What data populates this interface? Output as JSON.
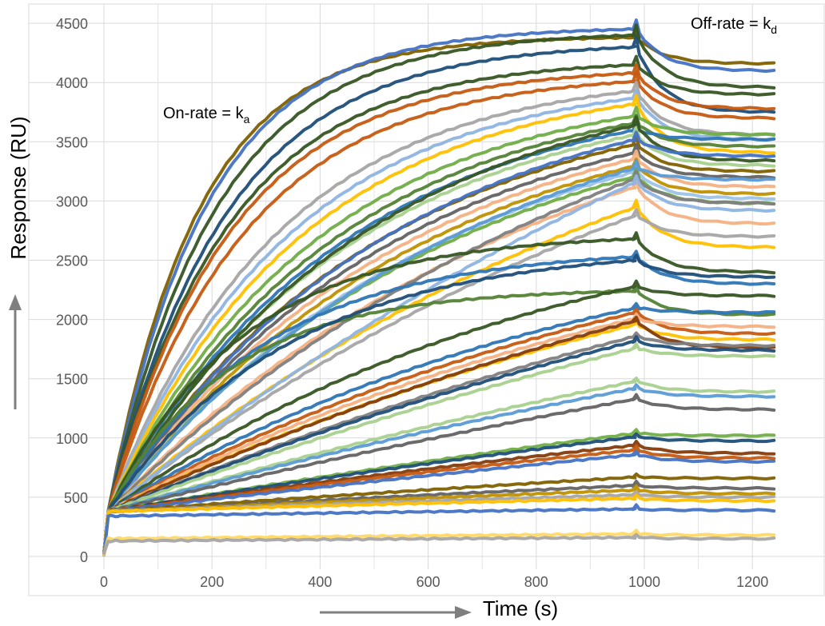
{
  "chart_data": {
    "type": "line",
    "title": "",
    "xlabel": "Time (s)",
    "ylabel": "Response (RU)",
    "xlim": [
      0,
      1250
    ],
    "ylim": [
      0,
      4500
    ],
    "x_ticks": [
      0,
      200,
      400,
      600,
      800,
      1000,
      1200
    ],
    "y_ticks": [
      0,
      500,
      1000,
      1500,
      2000,
      2500,
      3000,
      3500,
      4000,
      4500
    ],
    "x_minor_gridlines": [
      100,
      300,
      500,
      700,
      900,
      1100
    ],
    "grid": true,
    "legend": "none",
    "annotations": [
      {
        "text": "On-rate = k",
        "subscript": "a",
        "x": 200,
        "y": 3650
      },
      {
        "text": "Off-rate = k",
        "subscript": "d",
        "x": 1085,
        "y": 4450
      }
    ],
    "injection_end_s": 985,
    "curve_points_x": [
      0,
      5,
      10,
      15,
      20,
      30,
      50,
      75,
      100,
      150,
      200,
      300,
      400,
      500,
      600,
      700,
      800,
      900,
      985,
      1000,
      1050,
      1100,
      1150,
      1200,
      1250
    ],
    "series_note": "Each series is described by: baseline b (RU at t≈10 s), peak response p at end of association (t≈985 s), association shape k (1/s, small = nearly linear), dissociation end value e at t=1250 s, and color.",
    "series": [
      {
        "color": "#7f6000",
        "b": 380,
        "p": 4380,
        "k": 0.006,
        "e": 4160
      },
      {
        "color": "#4472c4",
        "b": 380,
        "p": 4450,
        "k": 0.0055,
        "e": 4100
      },
      {
        "color": "#375623",
        "b": 380,
        "p": 4400,
        "k": 0.005,
        "e": 3960
      },
      {
        "color": "#1f4e79",
        "b": 380,
        "p": 4300,
        "k": 0.0046,
        "e": 3750
      },
      {
        "color": "#375623",
        "b": 380,
        "p": 4150,
        "k": 0.0045,
        "e": 3900
      },
      {
        "color": "#c55a11",
        "b": 380,
        "p": 4080,
        "k": 0.0044,
        "e": 3780
      },
      {
        "color": "#c55a11",
        "b": 380,
        "p": 4010,
        "k": 0.004,
        "e": 3700
      },
      {
        "color": "#a5a5a5",
        "b": 380,
        "p": 3930,
        "k": 0.0032,
        "e": 3560
      },
      {
        "color": "#8eb4e3",
        "b": 380,
        "p": 3870,
        "k": 0.003,
        "e": 3520
      },
      {
        "color": "#ffc000",
        "b": 380,
        "p": 3820,
        "k": 0.0028,
        "e": 3410
      },
      {
        "color": "#70ad47",
        "b": 380,
        "p": 3720,
        "k": 0.0026,
        "e": 3560
      },
      {
        "color": "#548235",
        "b": 380,
        "p": 3660,
        "k": 0.0024,
        "e": 3460
      },
      {
        "color": "#2e75b6",
        "b": 380,
        "p": 3600,
        "k": 0.0023,
        "e": 3520
      },
      {
        "color": "#a9d18e",
        "b": 380,
        "p": 3560,
        "k": 0.0022,
        "e": 3300
      },
      {
        "color": "#375623",
        "b": 380,
        "p": 3640,
        "k": 0.0021,
        "e": 3340
      },
      {
        "color": "#7f6000",
        "b": 380,
        "p": 3480,
        "k": 0.002,
        "e": 3250
      },
      {
        "color": "#4472c4",
        "b": 380,
        "p": 3520,
        "k": 0.0019,
        "e": 3380
      },
      {
        "color": "#636363",
        "b": 380,
        "p": 3410,
        "k": 0.0019,
        "e": 3200
      },
      {
        "color": "#f4b183",
        "b": 380,
        "p": 3360,
        "k": 0.0018,
        "e": 3120
      },
      {
        "color": "#bf9000",
        "b": 380,
        "p": 3300,
        "k": 0.0017,
        "e": 3060
      },
      {
        "color": "#9dc3e6",
        "b": 380,
        "p": 3250,
        "k": 0.0016,
        "e": 3020
      },
      {
        "color": "#70ad47",
        "b": 380,
        "p": 3210,
        "k": 0.0016,
        "e": 2980
      },
      {
        "color": "#5b9bd5",
        "b": 380,
        "p": 3280,
        "k": 0.0015,
        "e": 3180
      },
      {
        "color": "#f4b183",
        "b": 380,
        "p": 3120,
        "k": 0.0012,
        "e": 2810
      },
      {
        "color": "#7f7f7f",
        "b": 380,
        "p": 3190,
        "k": 0.001,
        "e": 2980
      },
      {
        "color": "#ffc000",
        "b": 380,
        "p": 2950,
        "k": 0.0009,
        "e": 2610
      },
      {
        "color": "#a5a5a5",
        "b": 380,
        "p": 2880,
        "k": 0.0008,
        "e": 2700
      },
      {
        "color": "#8eb4e3",
        "b": 380,
        "p": 3160,
        "k": 0.0006,
        "e": 2920
      },
      {
        "color": "#375623",
        "b": 380,
        "p": 2680,
        "k": 0.004,
        "e": 2400
      },
      {
        "color": "#2e75b6",
        "b": 380,
        "p": 2530,
        "k": 0.0035,
        "e": 2300
      },
      {
        "color": "#548235",
        "b": 380,
        "p": 2240,
        "k": 0.0045,
        "e": 2040
      },
      {
        "color": "#1f4e79",
        "b": 380,
        "p": 2500,
        "k": 0.003,
        "e": 2360
      },
      {
        "color": "#375623",
        "b": 380,
        "p": 2280,
        "k": 0.0012,
        "e": 2200
      },
      {
        "color": "#2e75b6",
        "b": 380,
        "p": 2100,
        "k": 0.0011,
        "e": 2060
      },
      {
        "color": "#c55a11",
        "b": 380,
        "p": 2060,
        "k": 0.0009,
        "e": 1880
      },
      {
        "color": "#f4b183",
        "b": 380,
        "p": 2010,
        "k": 0.0008,
        "e": 1940
      },
      {
        "color": "#ffc000",
        "b": 380,
        "p": 1960,
        "k": 0.0007,
        "e": 1830
      },
      {
        "color": "#843c0c",
        "b": 380,
        "p": 1990,
        "k": 0.0006,
        "e": 1760
      },
      {
        "color": "#7f7f7f",
        "b": 380,
        "p": 1860,
        "k": 0.0005,
        "e": 1780
      },
      {
        "color": "#1f4e79",
        "b": 380,
        "p": 1820,
        "k": 0.0005,
        "e": 1740
      },
      {
        "color": "#a9d18e",
        "b": 380,
        "p": 1760,
        "k": 0.0004,
        "e": 1690
      },
      {
        "color": "#a9d18e",
        "b": 380,
        "p": 1480,
        "k": 0.0004,
        "e": 1390
      },
      {
        "color": "#5b9bd5",
        "b": 380,
        "p": 1420,
        "k": 0.0004,
        "e": 1350
      },
      {
        "color": "#636363",
        "b": 380,
        "p": 1330,
        "k": 0.0003,
        "e": 1240
      },
      {
        "color": "#70ad47",
        "b": 380,
        "p": 1040,
        "k": 0.0003,
        "e": 1020
      },
      {
        "color": "#1f4e79",
        "b": 380,
        "p": 1010,
        "k": 0.0003,
        "e": 975
      },
      {
        "color": "#843c0c",
        "b": 380,
        "p": 940,
        "k": 0.0003,
        "e": 870
      },
      {
        "color": "#c55a11",
        "b": 380,
        "p": 900,
        "k": 0.0003,
        "e": 830
      },
      {
        "color": "#4472c4",
        "b": 380,
        "p": 860,
        "k": 0.0002,
        "e": 800
      },
      {
        "color": "#7f6000",
        "b": 380,
        "p": 670,
        "k": 0.0002,
        "e": 660
      },
      {
        "color": "#636363",
        "b": 380,
        "p": 600,
        "k": 0.0002,
        "e": 575
      },
      {
        "color": "#bf9000",
        "b": 380,
        "p": 560,
        "k": 0.0002,
        "e": 530
      },
      {
        "color": "#a5a5a5",
        "b": 380,
        "p": 520,
        "k": 0.0002,
        "e": 500
      },
      {
        "color": "#ffc000",
        "b": 380,
        "p": 490,
        "k": 0.0002,
        "e": 470
      },
      {
        "color": "#4472c4",
        "b": 340,
        "p": 400,
        "k": 0.0002,
        "e": 390
      },
      {
        "color": "#ffd966",
        "b": 150,
        "p": 190,
        "k": 0.0002,
        "e": 180
      },
      {
        "color": "#a5a5a5",
        "b": 130,
        "p": 160,
        "k": 0.0002,
        "e": 150
      }
    ]
  }
}
